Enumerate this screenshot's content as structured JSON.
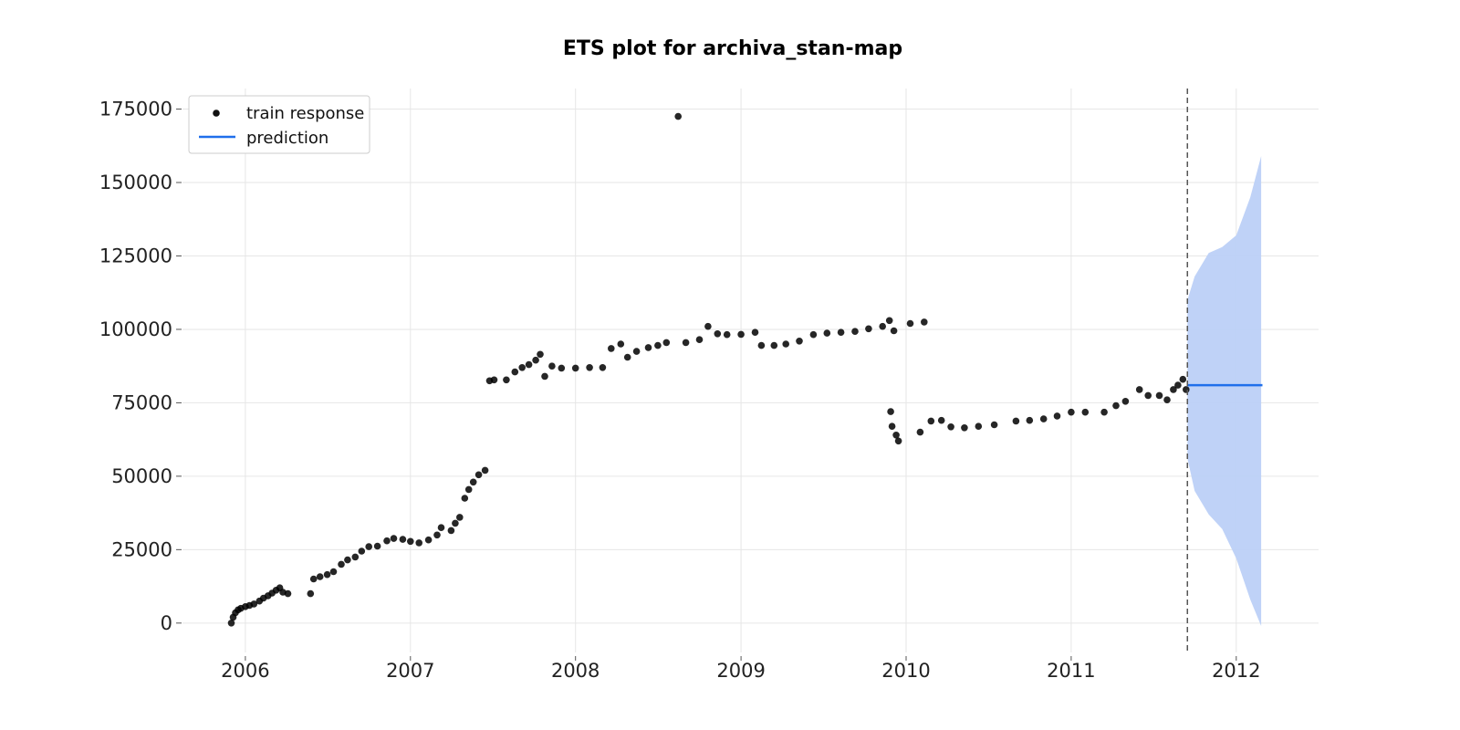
{
  "chart_data": {
    "type": "scatter",
    "title": "ETS plot for archiva_stan-map",
    "xlabel": "",
    "ylabel": "",
    "x_axis": {
      "type": "date",
      "ticks": [
        "2006",
        "2007",
        "2008",
        "2009",
        "2010",
        "2011",
        "2012"
      ],
      "range": [
        "2005-08-15",
        "2012-07-01"
      ]
    },
    "y_axis": {
      "ticks": [
        0,
        25000,
        50000,
        75000,
        100000,
        125000,
        150000,
        175000
      ],
      "range": [
        -10000,
        182000
      ]
    },
    "grid": true,
    "legend": {
      "placement": "top-left",
      "entries": [
        {
          "label": "train response",
          "kind": "marker",
          "color": "#000000"
        },
        {
          "label": "prediction",
          "kind": "line",
          "color": "#1f6feb"
        }
      ]
    },
    "series": [
      {
        "name": "train response",
        "kind": "scatter",
        "color": "#000000",
        "points": [
          [
            "2005-12-01",
            0
          ],
          [
            "2005-12-05",
            2000
          ],
          [
            "2005-12-10",
            3500
          ],
          [
            "2005-12-16",
            4500
          ],
          [
            "2005-12-22",
            5000
          ],
          [
            "2006-01-01",
            5600
          ],
          [
            "2006-01-10",
            6000
          ],
          [
            "2006-01-20",
            6500
          ],
          [
            "2006-02-01",
            7500
          ],
          [
            "2006-02-10",
            8500
          ],
          [
            "2006-02-20",
            9300
          ],
          [
            "2006-03-01",
            10200
          ],
          [
            "2006-03-10",
            11200
          ],
          [
            "2006-03-18",
            12000
          ],
          [
            "2006-03-25",
            10500
          ],
          [
            "2006-04-05",
            10000
          ],
          [
            "2006-05-25",
            10000
          ],
          [
            "2006-06-01",
            15000
          ],
          [
            "2006-06-15",
            15800
          ],
          [
            "2006-07-01",
            16500
          ],
          [
            "2006-07-15",
            17500
          ],
          [
            "2006-08-01",
            20000
          ],
          [
            "2006-08-15",
            21500
          ],
          [
            "2006-09-01",
            22500
          ],
          [
            "2006-09-15",
            24500
          ],
          [
            "2006-10-01",
            26000
          ],
          [
            "2006-10-20",
            26200
          ],
          [
            "2006-11-10",
            28000
          ],
          [
            "2006-11-25",
            28800
          ],
          [
            "2006-12-15",
            28500
          ],
          [
            "2007-01-01",
            27800
          ],
          [
            "2007-01-20",
            27300
          ],
          [
            "2007-02-10",
            28300
          ],
          [
            "2007-03-01",
            30000
          ],
          [
            "2007-03-10",
            32500
          ],
          [
            "2007-04-01",
            31500
          ],
          [
            "2007-04-10",
            34000
          ],
          [
            "2007-04-20",
            36000
          ],
          [
            "2007-05-01",
            42500
          ],
          [
            "2007-05-10",
            45500
          ],
          [
            "2007-05-20",
            48000
          ],
          [
            "2007-06-01",
            50500
          ],
          [
            "2007-06-15",
            52000
          ],
          [
            "2007-06-25",
            82500
          ],
          [
            "2007-07-05",
            82800
          ],
          [
            "2007-08-01",
            82800
          ],
          [
            "2007-08-20",
            85500
          ],
          [
            "2007-09-05",
            87000
          ],
          [
            "2007-09-20",
            88000
          ],
          [
            "2007-10-05",
            89500
          ],
          [
            "2007-10-15",
            91500
          ],
          [
            "2007-10-25",
            84000
          ],
          [
            "2007-11-10",
            87500
          ],
          [
            "2007-12-01",
            86800
          ],
          [
            "2008-01-01",
            86800
          ],
          [
            "2008-02-01",
            87000
          ],
          [
            "2008-03-01",
            87000
          ],
          [
            "2008-03-20",
            93500
          ],
          [
            "2008-04-10",
            95000
          ],
          [
            "2008-04-25",
            90500
          ],
          [
            "2008-05-15",
            92500
          ],
          [
            "2008-06-10",
            93800
          ],
          [
            "2008-07-01",
            94500
          ],
          [
            "2008-07-20",
            95500
          ],
          [
            "2008-08-15",
            172500
          ],
          [
            "2008-09-01",
            95500
          ],
          [
            "2008-10-01",
            96500
          ],
          [
            "2008-10-20",
            101000
          ],
          [
            "2008-11-10",
            98500
          ],
          [
            "2008-12-01",
            98200
          ],
          [
            "2009-01-01",
            98300
          ],
          [
            "2009-02-01",
            99000
          ],
          [
            "2009-02-15",
            94500
          ],
          [
            "2009-03-15",
            94500
          ],
          [
            "2009-04-10",
            95000
          ],
          [
            "2009-05-10",
            96000
          ],
          [
            "2009-06-10",
            98200
          ],
          [
            "2009-07-10",
            98700
          ],
          [
            "2009-08-10",
            99000
          ],
          [
            "2009-09-10",
            99300
          ],
          [
            "2009-10-10",
            100200
          ],
          [
            "2009-11-10",
            101000
          ],
          [
            "2009-11-25",
            103000
          ],
          [
            "2009-12-05",
            99500
          ],
          [
            "2009-11-28",
            72000
          ],
          [
            "2009-12-01",
            67000
          ],
          [
            "2009-12-10",
            64000
          ],
          [
            "2009-12-15",
            62000
          ],
          [
            "2010-01-10",
            102000
          ],
          [
            "2010-02-10",
            102500
          ],
          [
            "2010-02-01",
            65000
          ],
          [
            "2010-02-25",
            68800
          ],
          [
            "2010-03-20",
            69000
          ],
          [
            "2010-04-10",
            66800
          ],
          [
            "2010-05-10",
            66500
          ],
          [
            "2010-06-10",
            67000
          ],
          [
            "2010-07-15",
            67500
          ],
          [
            "2010-09-01",
            68800
          ],
          [
            "2010-10-01",
            69000
          ],
          [
            "2010-11-01",
            69500
          ],
          [
            "2010-12-01",
            70500
          ],
          [
            "2011-01-01",
            71800
          ],
          [
            "2011-02-01",
            71800
          ],
          [
            "2011-03-15",
            71800
          ],
          [
            "2011-04-10",
            74000
          ],
          [
            "2011-05-01",
            75500
          ],
          [
            "2011-06-01",
            79500
          ],
          [
            "2011-06-20",
            77500
          ],
          [
            "2011-07-15",
            77500
          ],
          [
            "2011-08-01",
            76000
          ],
          [
            "2011-08-15",
            79500
          ],
          [
            "2011-08-25",
            81000
          ],
          [
            "2011-09-05",
            83000
          ],
          [
            "2011-09-12",
            79500
          ]
        ]
      },
      {
        "name": "prediction",
        "kind": "line",
        "color": "#1f6feb",
        "points": [
          [
            "2011-09-15",
            81000
          ],
          [
            "2012-02-28",
            81000
          ]
        ]
      },
      {
        "name": "prediction interval",
        "kind": "band",
        "color": "#bcd0f7",
        "x": [
          "2011-09-15",
          "2011-10-01",
          "2011-11-01",
          "2011-12-01",
          "2012-01-01",
          "2012-02-01",
          "2012-02-25"
        ],
        "upper": [
          110000,
          118000,
          126000,
          128000,
          132000,
          145000,
          159000
        ],
        "lower": [
          56000,
          45000,
          37000,
          32000,
          22000,
          8000,
          -1000
        ]
      }
    ],
    "annotations": [
      {
        "kind": "vline",
        "x": "2011-09-15",
        "style": "dashed",
        "color": "#555555"
      }
    ]
  }
}
